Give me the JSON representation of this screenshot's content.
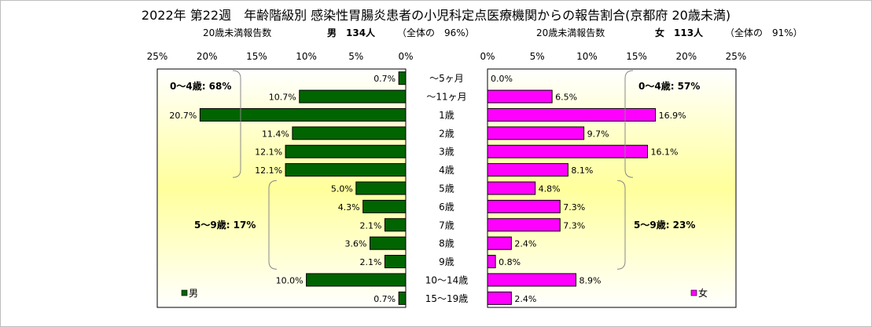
{
  "chart_data": {
    "type": "bar",
    "orientation": "horizontal-butterfly",
    "title": "2022年 第22週　年齢階級別 感染性胃腸炎患者の小児科定点医療機関からの報告割合(京都府 20歳未満)",
    "categories": [
      "～5ヶ月",
      "～11ヶ月",
      "1歳",
      "2歳",
      "3歳",
      "4歳",
      "5歳",
      "6歳",
      "7歳",
      "8歳",
      "9歳",
      "10～14歳",
      "15～19歳"
    ],
    "xlim": [
      0,
      25
    ],
    "x_ticks": [
      "25%",
      "20%",
      "15%",
      "10%",
      "5%",
      "0%",
      "0%",
      "5%",
      "10%",
      "15%",
      "20%",
      "25%"
    ],
    "colors": {
      "male": "#006400",
      "female": "#ff00ff",
      "plot_gradient_edge": "#ffff9c"
    },
    "series": [
      {
        "name": "男",
        "subtitle_label": "20歳未満報告数",
        "subtitle_value": "男　134人",
        "subtitle_share": "（全体の　96%）",
        "values": [
          0.7,
          10.7,
          20.7,
          11.4,
          12.1,
          12.1,
          5.0,
          4.3,
          2.1,
          3.6,
          2.1,
          10.0,
          0.7
        ],
        "labels": [
          "0.7%",
          "10.7%",
          "20.7%",
          "11.4%",
          "12.1%",
          "12.1%",
          "5.0%",
          "4.3%",
          "2.1%",
          "3.6%",
          "2.1%",
          "10.0%",
          "0.7%"
        ],
        "groups": [
          {
            "label": "0～4歳: 68%",
            "from": 0,
            "to": 5
          },
          {
            "label": "5～9歳: 17%",
            "from": 6,
            "to": 10
          }
        ]
      },
      {
        "name": "女",
        "subtitle_label": "20歳未満報告数",
        "subtitle_value": "女　113人",
        "subtitle_share": "（全体の　91%）",
        "values": [
          0.0,
          6.5,
          16.9,
          9.7,
          16.1,
          8.1,
          4.8,
          7.3,
          7.3,
          2.4,
          0.8,
          8.9,
          2.4
        ],
        "labels": [
          "0.0%",
          "6.5%",
          "16.9%",
          "9.7%",
          "16.1%",
          "8.1%",
          "4.8%",
          "7.3%",
          "7.3%",
          "2.4%",
          "0.8%",
          "8.9%",
          "2.4%"
        ],
        "groups": [
          {
            "label": "0～4歳: 57%",
            "from": 0,
            "to": 5
          },
          {
            "label": "5～9歳: 23%",
            "from": 6,
            "to": 10
          }
        ]
      }
    ]
  }
}
